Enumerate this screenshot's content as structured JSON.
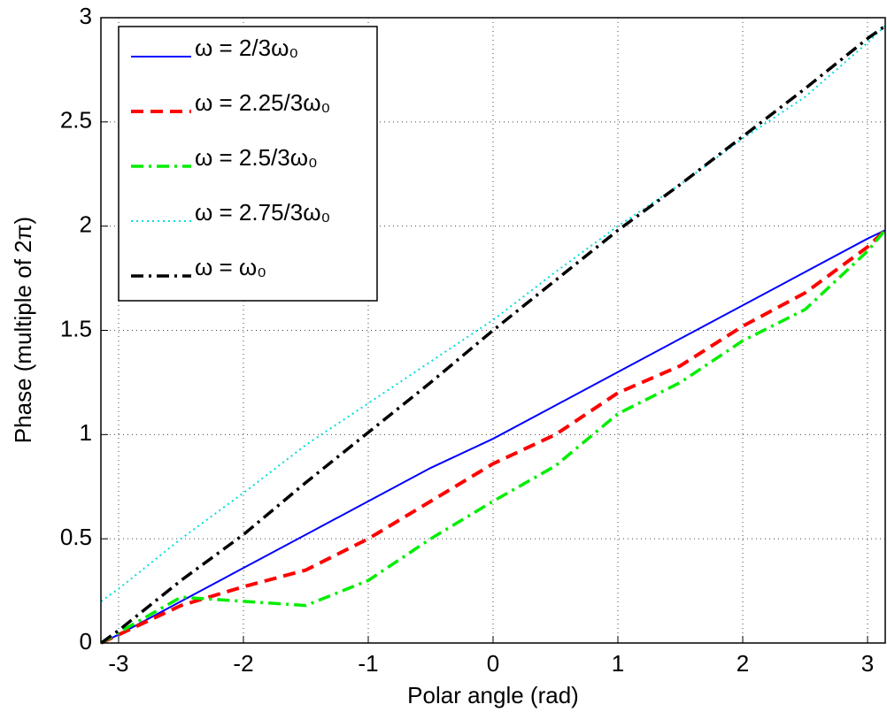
{
  "chart_data": {
    "type": "line",
    "xlabel": "Polar angle (rad)",
    "ylabel": "Phase (multiple of 2π)",
    "x": [
      -3.14,
      -3,
      -2.5,
      -2,
      -1.5,
      -1,
      -0.5,
      0,
      0.5,
      1,
      1.5,
      2,
      2.5,
      3,
      3.14
    ],
    "series": [
      {
        "name": "ω = 2/3ω₀",
        "color": "#0000ff",
        "linestyle": "solid",
        "values": [
          0,
          0.04,
          0.2,
          0.36,
          0.52,
          0.68,
          0.84,
          0.98,
          1.14,
          1.3,
          1.46,
          1.62,
          1.78,
          1.94,
          1.98
        ]
      },
      {
        "name": "ω = 2.25/3ω₀",
        "color": "#ff0000",
        "linestyle": "dashed",
        "values": [
          0,
          0.04,
          0.18,
          0.27,
          0.35,
          0.5,
          0.68,
          0.86,
          1.0,
          1.2,
          1.33,
          1.52,
          1.68,
          1.9,
          1.98
        ]
      },
      {
        "name": "ω = 2.5/3ω₀",
        "color": "#00ee00",
        "linestyle": "dashdot",
        "values": [
          0,
          0.05,
          0.22,
          0.2,
          0.18,
          0.3,
          0.5,
          0.68,
          0.85,
          1.1,
          1.25,
          1.45,
          1.6,
          1.88,
          1.98
        ]
      },
      {
        "name": "ω = 2.75/3ω₀",
        "color": "#00dddd",
        "linestyle": "dotted",
        "values": [
          0.2,
          0.26,
          0.5,
          0.72,
          0.95,
          1.15,
          1.35,
          1.55,
          1.78,
          2.0,
          2.2,
          2.42,
          2.62,
          2.88,
          2.96
        ]
      },
      {
        "name": "ω = ω₀",
        "color": "#000000",
        "linestyle": "dashdot",
        "values": [
          0,
          0.06,
          0.3,
          0.52,
          0.77,
          1.01,
          1.25,
          1.5,
          1.74,
          1.98,
          2.2,
          2.43,
          2.66,
          2.9,
          2.96
        ]
      }
    ],
    "xlim": [
      -3.1416,
      3.1416
    ],
    "xticks": [
      -3,
      -2,
      -1,
      0,
      1,
      2,
      3
    ],
    "ylim": [
      0,
      3
    ],
    "yticks": [
      0,
      0.5,
      1,
      1.5,
      2,
      2.5,
      3
    ],
    "grid": true,
    "legend": "upper left"
  }
}
